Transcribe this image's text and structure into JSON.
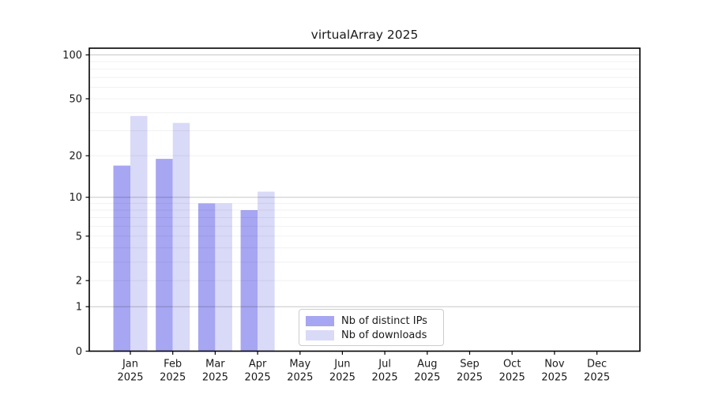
{
  "title": "virtualArray 2025",
  "legend": {
    "items": [
      {
        "label": "Nb of distinct IPs",
        "color": "#a6a6f2"
      },
      {
        "label": "Nb of downloads",
        "color": "#d9d9f8"
      }
    ]
  },
  "chart_data": {
    "type": "bar",
    "title": "virtualArray 2025",
    "categories": [
      "Jan",
      "Feb",
      "Mar",
      "Apr",
      "May",
      "Jun",
      "Jul",
      "Aug",
      "Sep",
      "Oct",
      "Nov",
      "Dec"
    ],
    "category_year": "2025",
    "series": [
      {
        "name": "Nb of distinct IPs",
        "color": "#a6a6f2",
        "values": [
          17,
          19,
          9,
          8,
          0,
          0,
          0,
          0,
          0,
          0,
          0,
          0
        ]
      },
      {
        "name": "Nb of downloads",
        "color": "#d9d9f8",
        "values": [
          38,
          34,
          9,
          11,
          0,
          0,
          0,
          0,
          0,
          0,
          0,
          0
        ]
      }
    ],
    "xlabel": "",
    "ylabel": "",
    "yscale": "log1p",
    "yticks": [
      0,
      1,
      2,
      5,
      10,
      20,
      50,
      100
    ],
    "ylim": [
      0,
      111
    ],
    "grid": {
      "major_lines": [
        1,
        10,
        100
      ],
      "minor_lines": [
        2,
        3,
        4,
        5,
        6,
        7,
        8,
        9,
        20,
        30,
        40,
        50,
        60,
        70,
        80,
        90
      ]
    },
    "legend_position": "lower center"
  }
}
